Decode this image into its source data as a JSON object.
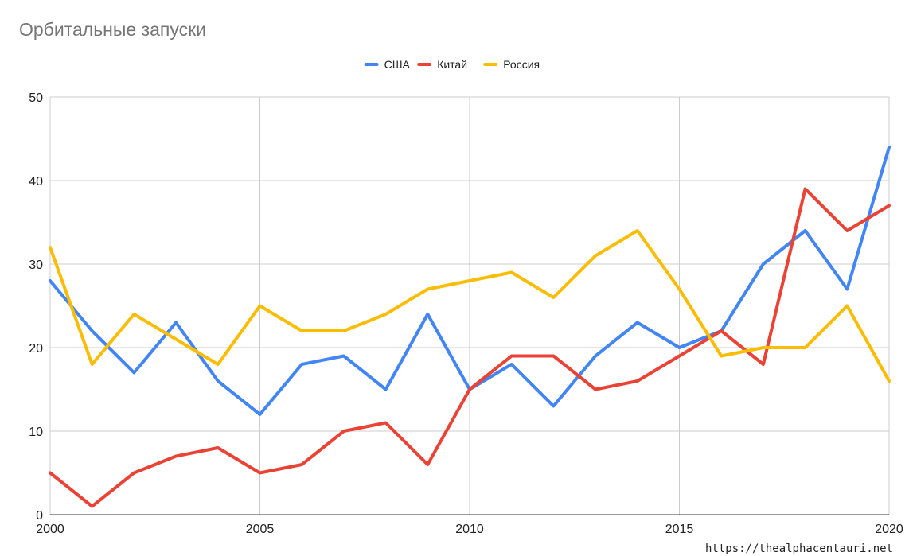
{
  "chart_data": {
    "type": "line",
    "title": "Орбитальные запуски",
    "x": [
      2000,
      2001,
      2002,
      2003,
      2004,
      2005,
      2006,
      2007,
      2008,
      2009,
      2010,
      2011,
      2012,
      2013,
      2014,
      2015,
      2016,
      2017,
      2018,
      2019,
      2020
    ],
    "series": [
      {
        "name": "США",
        "color": "#4285f4",
        "values": [
          28,
          22,
          17,
          23,
          16,
          12,
          18,
          19,
          15,
          24,
          15,
          18,
          13,
          19,
          23,
          20,
          22,
          30,
          34,
          27,
          44
        ]
      },
      {
        "name": "Китай",
        "color": "#ea4335",
        "values": [
          5,
          1,
          5,
          7,
          8,
          5,
          6,
          10,
          11,
          6,
          15,
          19,
          19,
          15,
          16,
          19,
          22,
          18,
          39,
          34,
          37
        ]
      },
      {
        "name": "Россия",
        "color": "#fbbc04",
        "values": [
          32,
          18,
          24,
          21,
          18,
          25,
          22,
          22,
          24,
          27,
          28,
          29,
          26,
          31,
          34,
          27,
          19,
          20,
          20,
          25,
          16
        ]
      }
    ],
    "xlim": [
      2000,
      2020
    ],
    "ylim": [
      0,
      50
    ],
    "x_ticks": [
      2000,
      2005,
      2010,
      2015,
      2020
    ],
    "y_ticks": [
      0,
      10,
      20,
      30,
      40,
      50
    ],
    "legend": "top-center",
    "grid": true
  },
  "watermark": "https://thealphacentauri.net"
}
